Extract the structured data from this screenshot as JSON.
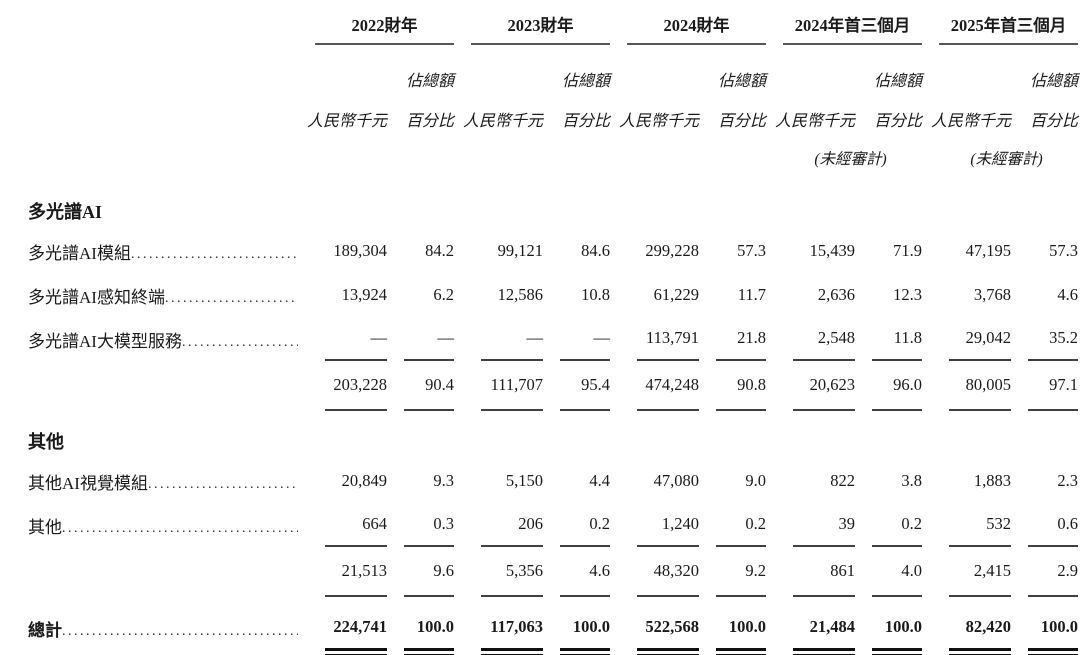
{
  "colors": {
    "rule_gray": "#565656",
    "line_dark": "#404040",
    "total_line": "#111111",
    "text": "#1a1a1a",
    "background": "#ffffff"
  },
  "table": {
    "column_groups": [
      {
        "year": "2022財年",
        "share_label": "佔總額",
        "unit_label": "人民幣千元",
        "pct_label": "百分比"
      },
      {
        "year": "2023財年",
        "share_label": "佔總額",
        "unit_label": "人民幣千元",
        "pct_label": "百分比"
      },
      {
        "year": "2024財年",
        "share_label": "佔總額",
        "unit_label": "人民幣千元",
        "pct_label": "百分比"
      },
      {
        "year": "2024年首三個月",
        "share_label": "佔總額",
        "unit_label": "人民幣千元",
        "pct_label": "百分比",
        "unaudited": "(未經審計)"
      },
      {
        "year": "2025年首三個月",
        "share_label": "佔總額",
        "unit_label": "人民幣千元",
        "pct_label": "百分比",
        "unaudited": "(未經審計)"
      }
    ],
    "sections": [
      {
        "header": "多光譜AI",
        "rows": [
          {
            "label": "多光譜AI模組",
            "values": [
              "189,304",
              "84.2",
              "99,121",
              "84.6",
              "299,228",
              "57.3",
              "15,439",
              "71.9",
              "47,195",
              "57.3"
            ]
          },
          {
            "label": "多光譜AI感知終端",
            "values": [
              "13,924",
              "6.2",
              "12,586",
              "10.8",
              "61,229",
              "11.7",
              "2,636",
              "12.3",
              "3,768",
              "4.6"
            ]
          },
          {
            "label": "多光譜AI大模型服務",
            "values": [
              "—",
              "—",
              "—",
              "—",
              "113,791",
              "21.8",
              "2,548",
              "11.8",
              "29,042",
              "35.2"
            ]
          }
        ],
        "subtotal": [
          "203,228",
          "90.4",
          "111,707",
          "95.4",
          "474,248",
          "90.8",
          "20,623",
          "96.0",
          "80,005",
          "97.1"
        ]
      },
      {
        "header": "其他",
        "rows": [
          {
            "label": "其他AI視覺模組",
            "values": [
              "20,849",
              "9.3",
              "5,150",
              "4.4",
              "47,080",
              "9.0",
              "822",
              "3.8",
              "1,883",
              "2.3"
            ]
          },
          {
            "label": "其他",
            "values": [
              "664",
              "0.3",
              "206",
              "0.2",
              "1,240",
              "0.2",
              "39",
              "0.2",
              "532",
              "0.6"
            ]
          }
        ],
        "subtotal": [
          "21,513",
          "9.6",
          "5,356",
          "4.6",
          "48,320",
          "9.2",
          "861",
          "4.0",
          "2,415",
          "2.9"
        ]
      }
    ],
    "total": {
      "label": "總計",
      "values": [
        "224,741",
        "100.0",
        "117,063",
        "100.0",
        "522,568",
        "100.0",
        "21,484",
        "100.0",
        "82,420",
        "100.0"
      ]
    }
  }
}
